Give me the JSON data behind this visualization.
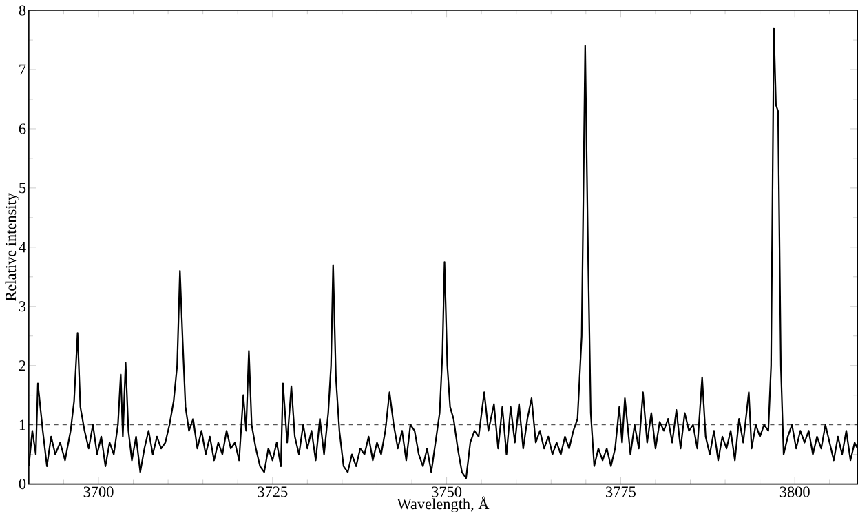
{
  "chart_data": {
    "type": "line",
    "xlabel": "Wavelength, Å",
    "ylabel": "Relative intensity",
    "xlim": [
      3690,
      3809
    ],
    "ylim": [
      0,
      8
    ],
    "xticks": [
      3700,
      3725,
      3750,
      3775,
      3800,
      {
        "value": 3690,
        "label": null
      },
      {
        "value": 3695,
        "label": null
      },
      {
        "value": 3705,
        "label": null
      },
      {
        "value": 3710,
        "label": null
      },
      {
        "value": 3715,
        "label": null
      },
      {
        "value": 3720,
        "label": null
      },
      {
        "value": 3730,
        "label": null
      },
      {
        "value": 3735,
        "label": null
      },
      {
        "value": 3740,
        "label": null
      },
      {
        "value": 3745,
        "label": null
      },
      {
        "value": 3755,
        "label": null
      },
      {
        "value": 3760,
        "label": null
      },
      {
        "value": 3765,
        "label": null
      },
      {
        "value": 3770,
        "label": null
      },
      {
        "value": 3780,
        "label": null
      },
      {
        "value": 3785,
        "label": null
      },
      {
        "value": 3790,
        "label": null
      },
      {
        "value": 3795,
        "label": null
      },
      {
        "value": 3805,
        "label": null
      }
    ],
    "yticks": [
      0,
      1,
      2,
      3,
      4,
      5,
      6,
      7,
      8,
      {
        "value": 0.5,
        "label": null
      },
      {
        "value": 1.5,
        "label": null
      },
      {
        "value": 2.5,
        "label": null
      },
      {
        "value": 3.5,
        "label": null
      },
      {
        "value": 4.5,
        "label": null
      },
      {
        "value": 5.5,
        "label": null
      },
      {
        "value": 6.5,
        "label": null
      },
      {
        "value": 7.5,
        "label": null
      }
    ],
    "grid": false,
    "marker": "none",
    "line_style": "solid",
    "ref_lines": [
      {
        "axis": "y",
        "value": 1,
        "line_style": "dashed",
        "color": "#000000"
      }
    ],
    "series": [
      {
        "color": "#000000",
        "x": [
          3690.0,
          3690.5,
          3691,
          3691.3,
          3692,
          3692.6,
          3693.2,
          3693.8,
          3694.5,
          3695.2,
          3696,
          3696.5,
          3697.0,
          3697.4,
          3698,
          3698.6,
          3699.2,
          3699.8,
          3700.4,
          3701,
          3701.6,
          3702.2,
          3702.8,
          3703.2,
          3703.5,
          3703.9,
          3704.3,
          3704.8,
          3705.4,
          3706,
          3706.6,
          3707.2,
          3707.8,
          3708.4,
          3709,
          3709.6,
          3710.2,
          3710.8,
          3711.3,
          3711.7,
          3712.1,
          3712.5,
          3713,
          3713.6,
          3714.2,
          3714.8,
          3715.4,
          3716,
          3716.6,
          3717.2,
          3717.8,
          3718.4,
          3719,
          3719.6,
          3720.2,
          3720.8,
          3721.2,
          3721.6,
          3722,
          3722.6,
          3723.2,
          3723.8,
          3724.4,
          3725,
          3725.6,
          3726.2,
          3726.5,
          3727.1,
          3727.7,
          3728.2,
          3728.8,
          3729.4,
          3730,
          3730.6,
          3731.2,
          3731.8,
          3732.4,
          3733,
          3733.4,
          3733.7,
          3734.1,
          3734.6,
          3735.2,
          3735.8,
          3736.4,
          3737,
          3737.6,
          3738.2,
          3738.8,
          3739.4,
          3740,
          3740.6,
          3741.2,
          3741.8,
          3742.4,
          3743,
          3743.6,
          3744.2,
          3744.8,
          3745.4,
          3746,
          3746.6,
          3747.2,
          3747.8,
          3748.4,
          3749,
          3749.4,
          3749.7,
          3750.1,
          3750.5,
          3751,
          3751.6,
          3752.2,
          3752.8,
          3753.4,
          3754,
          3754.6,
          3755.4,
          3756,
          3756.8,
          3757.4,
          3758,
          3758.6,
          3759.2,
          3759.8,
          3760.4,
          3761,
          3761.6,
          3762.2,
          3762.8,
          3763.4,
          3764,
          3764.6,
          3765.2,
          3765.8,
          3766.4,
          3767,
          3767.6,
          3768.2,
          3768.8,
          3769.4,
          3769.9,
          3770.3,
          3770.7,
          3771.2,
          3771.8,
          3772.4,
          3773,
          3773.6,
          3774.2,
          3774.8,
          3775.2,
          3775.6,
          3776.4,
          3777,
          3777.6,
          3778.2,
          3778.8,
          3779.4,
          3780,
          3780.6,
          3781.2,
          3781.8,
          3782.4,
          3783,
          3783.6,
          3784.2,
          3784.8,
          3785.4,
          3786,
          3786.7,
          3787.2,
          3787.8,
          3788.4,
          3789,
          3789.6,
          3790.2,
          3790.8,
          3791.4,
          3792,
          3792.6,
          3793.4,
          3793.8,
          3794.4,
          3795,
          3795.6,
          3796.2,
          3796.6,
          3797.0,
          3797.3,
          3797.6,
          3798,
          3798.4,
          3799,
          3799.6,
          3800.2,
          3800.8,
          3801.4,
          3802,
          3802.6,
          3803.2,
          3803.8,
          3804.4,
          3805,
          3805.6,
          3806.2,
          3806.8,
          3807.4,
          3808,
          3808.6,
          3809
        ],
        "values": [
          0.3,
          0.9,
          0.5,
          1.7,
          0.9,
          0.3,
          0.8,
          0.5,
          0.7,
          0.4,
          0.9,
          1.4,
          2.55,
          1.3,
          0.9,
          0.6,
          1.0,
          0.5,
          0.8,
          0.3,
          0.7,
          0.5,
          1.0,
          1.85,
          0.8,
          2.05,
          0.9,
          0.4,
          0.8,
          0.2,
          0.6,
          0.9,
          0.5,
          0.8,
          0.6,
          0.7,
          1.0,
          1.4,
          2.0,
          3.6,
          2.4,
          1.3,
          0.9,
          1.1,
          0.6,
          0.9,
          0.5,
          0.8,
          0.4,
          0.7,
          0.5,
          0.9,
          0.6,
          0.7,
          0.4,
          1.5,
          0.9,
          2.25,
          1.0,
          0.6,
          0.3,
          0.2,
          0.6,
          0.4,
          0.7,
          0.3,
          1.7,
          0.7,
          1.65,
          0.8,
          0.5,
          1.0,
          0.6,
          0.9,
          0.4,
          1.1,
          0.5,
          1.2,
          2.0,
          3.7,
          1.8,
          0.9,
          0.3,
          0.2,
          0.5,
          0.3,
          0.6,
          0.5,
          0.8,
          0.4,
          0.7,
          0.5,
          0.9,
          1.55,
          1.0,
          0.6,
          0.9,
          0.4,
          1.0,
          0.9,
          0.5,
          0.3,
          0.6,
          0.2,
          0.7,
          1.2,
          2.2,
          3.75,
          2.0,
          1.3,
          1.1,
          0.6,
          0.2,
          0.1,
          0.7,
          0.9,
          0.8,
          1.55,
          0.9,
          1.35,
          0.6,
          1.3,
          0.5,
          1.3,
          0.7,
          1.35,
          0.6,
          1.1,
          1.45,
          0.7,
          0.9,
          0.6,
          0.8,
          0.5,
          0.7,
          0.5,
          0.8,
          0.6,
          0.9,
          1.1,
          2.5,
          7.4,
          4.0,
          1.2,
          0.3,
          0.6,
          0.4,
          0.6,
          0.3,
          0.6,
          1.3,
          0.7,
          1.45,
          0.5,
          1.0,
          0.6,
          1.55,
          0.7,
          1.2,
          0.6,
          1.05,
          0.9,
          1.1,
          0.7,
          1.25,
          0.6,
          1.2,
          0.9,
          1.0,
          0.6,
          1.8,
          0.8,
          0.5,
          0.9,
          0.4,
          0.8,
          0.6,
          0.9,
          0.4,
          1.1,
          0.7,
          1.55,
          0.6,
          1.0,
          0.8,
          1.0,
          0.9,
          2.0,
          7.7,
          6.4,
          6.3,
          2.0,
          0.5,
          0.8,
          1.0,
          0.6,
          0.9,
          0.7,
          0.9,
          0.5,
          0.8,
          0.6,
          1.0,
          0.7,
          0.4,
          0.8,
          0.5,
          0.9,
          0.4,
          0.7,
          0.6
        ]
      }
    ]
  }
}
